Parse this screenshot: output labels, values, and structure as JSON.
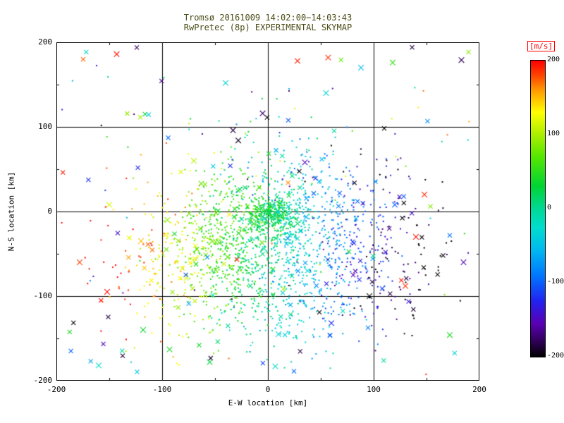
{
  "chart_data": {
    "type": "scatter",
    "title": "Tromsø 20161009 14:02:00−14:03:43",
    "subtitle": "RwPretec (8p) EXPERIMENTAL SKYMAP",
    "title_color": "#4b4b17",
    "xlabel": "E-W location [km]",
    "ylabel": "N-S location [km]",
    "xlim": [
      -200,
      200
    ],
    "ylim": [
      -200,
      200
    ],
    "xticks": [
      -200,
      -100,
      0,
      100,
      200
    ],
    "yticks": [
      -200,
      -100,
      0,
      100,
      200
    ],
    "minor_ticks": [
      -150,
      -50,
      50,
      150
    ],
    "grid": true,
    "color_by": "line-of-sight velocity [m/s]",
    "colorbar": {
      "label": "[m/s]",
      "label_color": "#ff0000",
      "min": -200,
      "max": 200,
      "ticks": [
        200,
        100,
        0,
        -100,
        -200
      ],
      "stops": [
        [
          -200,
          "#000000"
        ],
        [
          -180,
          "#2e0054"
        ],
        [
          -155,
          "#5a00b4"
        ],
        [
          -125,
          "#2222ee"
        ],
        [
          -90,
          "#0077ff"
        ],
        [
          -55,
          "#00bbee"
        ],
        [
          -25,
          "#00ddcc"
        ],
        [
          0,
          "#00d896"
        ],
        [
          30,
          "#00d435"
        ],
        [
          70,
          "#55e600"
        ],
        [
          100,
          "#aaee00"
        ],
        [
          130,
          "#ffff00"
        ],
        [
          160,
          "#ff9900"
        ],
        [
          180,
          "#ff4400"
        ],
        [
          200,
          "#ff0000"
        ]
      ]
    },
    "seed": 20161009,
    "markers": {
      "dot_size": 2,
      "x_half_size": 3
    },
    "clusters": [
      {
        "name": "core",
        "count": 380,
        "cx": 4,
        "cy": -3,
        "sx": 13,
        "sy": 10,
        "skew": 0,
        "v_base": 35,
        "v_slope_x": -1.0,
        "v_noise": 22,
        "x_frac": 0.02
      },
      {
        "name": "main-cloud",
        "count": 1500,
        "cx": -12,
        "cy": -38,
        "sx": 58,
        "sy": 46,
        "skew": 0.15,
        "v_base": 5,
        "v_slope_x": -1.25,
        "v_noise": 28,
        "x_frac": 0.05
      },
      {
        "name": "right-dark",
        "count": 170,
        "cx": 98,
        "cy": -68,
        "sx": 40,
        "sy": 42,
        "skew": 0,
        "v_base": -60,
        "v_slope_x": -0.9,
        "v_noise": 35,
        "x_frac": 0.12
      },
      {
        "name": "bottom-teal",
        "count": 120,
        "cx": 15,
        "cy": -122,
        "sx": 42,
        "sy": 28,
        "skew": 0,
        "v_base": -25,
        "v_slope_x": -0.5,
        "v_noise": 25,
        "x_frac": 0.06
      },
      {
        "name": "upper-sparse",
        "count": 100,
        "cx": 12,
        "cy": 58,
        "sx": 48,
        "sy": 36,
        "skew": 0,
        "v_base": -30,
        "v_slope_x": -1.1,
        "v_noise": 60,
        "x_frac": 0.1
      },
      {
        "name": "field",
        "count": 140,
        "uniform": true,
        "x_frac": 0.45
      }
    ],
    "feature_points": [
      [
        -143,
        186,
        195,
        "x"
      ],
      [
        28,
        178,
        192,
        "x"
      ],
      [
        57,
        182,
        188,
        "x"
      ],
      [
        88,
        170,
        -55,
        "x"
      ],
      [
        118,
        176,
        55,
        "x"
      ],
      [
        183,
        179,
        -178,
        "x"
      ],
      [
        -40,
        152,
        -35,
        "x"
      ],
      [
        55,
        140,
        -30,
        "x"
      ],
      [
        -5,
        116,
        -172,
        "x"
      ],
      [
        -33,
        96,
        -185,
        "x"
      ],
      [
        -28,
        84,
        -192,
        "x"
      ],
      [
        -150,
        8,
        118,
        "x"
      ],
      [
        -178,
        -60,
        182,
        "x"
      ],
      [
        -152,
        -95,
        198,
        "x"
      ],
      [
        -120,
        -35,
        150,
        "x"
      ],
      [
        -95,
        -10,
        92,
        "x"
      ],
      [
        140,
        -30,
        196,
        "x"
      ],
      [
        148,
        20,
        188,
        "x"
      ],
      [
        96,
        -100,
        -198,
        "x"
      ],
      [
        130,
        -88,
        186,
        "x"
      ],
      [
        -118,
        -140,
        32,
        "x"
      ],
      [
        -93,
        -163,
        40,
        "x"
      ],
      [
        -55,
        -178,
        25,
        "x"
      ],
      [
        -160,
        -182,
        -22,
        "x"
      ],
      [
        7,
        -183,
        -25,
        "x"
      ],
      [
        10,
        -145,
        -30,
        "x"
      ],
      [
        60,
        -132,
        -120,
        "x"
      ],
      [
        172,
        -146,
        45,
        "x"
      ],
      [
        185,
        -60,
        -152,
        "x"
      ],
      [
        120,
        8,
        -100,
        "x"
      ],
      [
        -70,
        60,
        105,
        "x"
      ],
      [
        35,
        58,
        -150,
        "x"
      ],
      [
        -63,
        33,
        75,
        "x"
      ]
    ]
  }
}
